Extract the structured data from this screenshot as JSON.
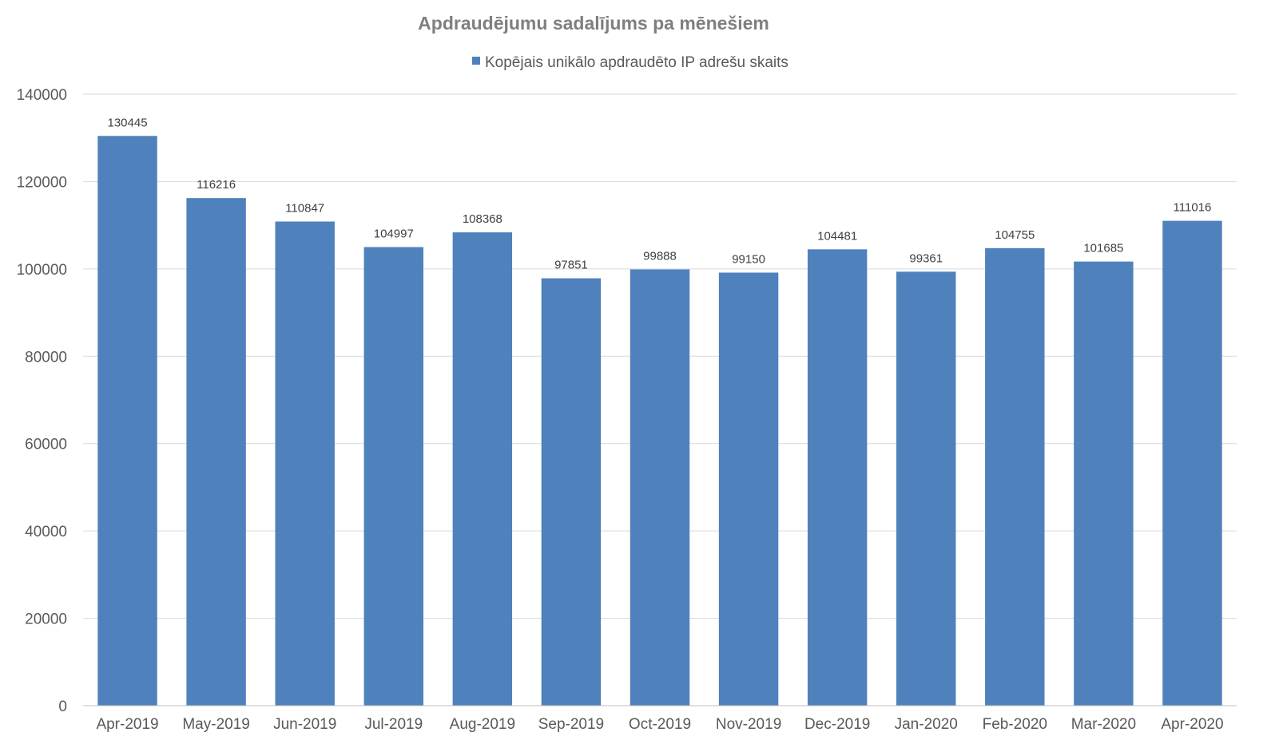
{
  "chart_data": {
    "type": "bar",
    "title": "Apdraudējumu sadalījums pa mēnešiem",
    "xlabel": "",
    "ylabel": "",
    "categories": [
      "Apr-2019",
      "May-2019",
      "Jun-2019",
      "Jul-2019",
      "Aug-2019",
      "Sep-2019",
      "Oct-2019",
      "Nov-2019",
      "Dec-2019",
      "Jan-2020",
      "Feb-2020",
      "Mar-2020",
      "Apr-2020"
    ],
    "series": [
      {
        "name": "Kopējais unikālo apdraudēto IP adrešu skaits",
        "color": "#4f81bd",
        "values": [
          130445,
          116216,
          110847,
          104997,
          108368,
          97851,
          99888,
          99150,
          104481,
          99361,
          104755,
          101685,
          111016
        ]
      }
    ],
    "ylim": [
      0,
      140000
    ],
    "yticks": [
      0,
      20000,
      40000,
      60000,
      80000,
      100000,
      120000,
      140000
    ],
    "grid": true,
    "legend": "top-center",
    "data_labels": true
  }
}
